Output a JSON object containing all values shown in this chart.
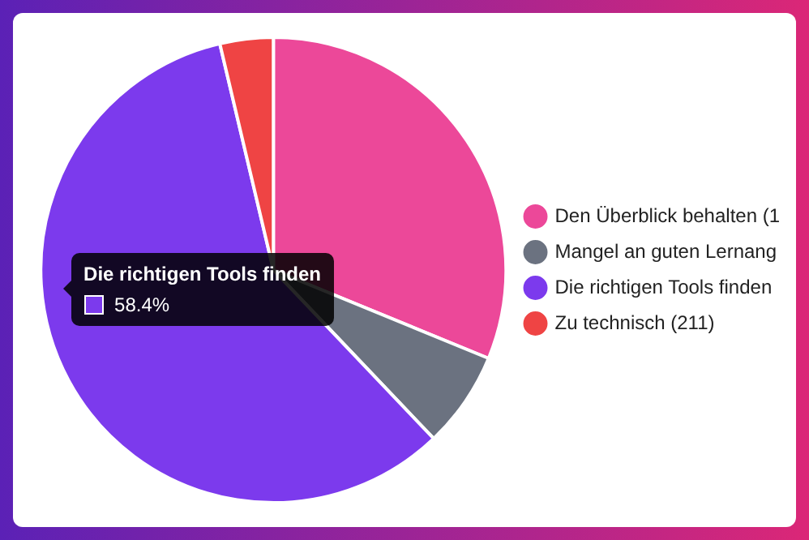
{
  "chart_data": {
    "type": "pie",
    "categories": [
      "Den Überblick behalten (1",
      "Mangel an guten Lernang",
      "Die richtigen Tools finden",
      "Zu technisch (211)"
    ],
    "values": [
      31.2,
      6.7,
      58.4,
      3.7
    ],
    "colors": [
      "#ec4899",
      "#6b7280",
      "#7c3aed",
      "#ef4444"
    ],
    "legend": "right",
    "annotations": [
      {
        "text": "58.4%",
        "x": "Die richtigen Tools finden"
      }
    ]
  }
}
